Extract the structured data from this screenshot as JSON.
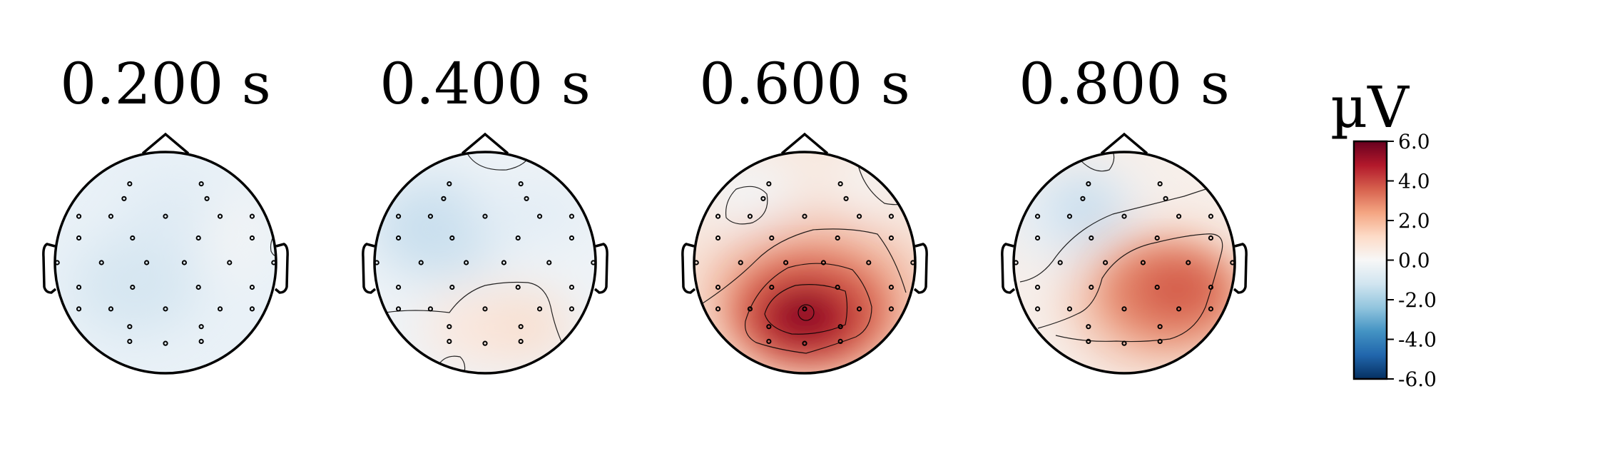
{
  "chart_data": {
    "type": "heatmap",
    "kind": "eeg-topomap",
    "colormap": "RdBu_r",
    "unit": "µV",
    "vlim": [
      -6.0,
      6.0
    ],
    "colorbar": {
      "title": "µV",
      "ticks": [
        6.0,
        4.0,
        2.0,
        0.0,
        -2.0,
        -4.0,
        -6.0
      ],
      "tick_labels": [
        "6.0",
        "4.0",
        "2.0",
        "0.0",
        "-2.0",
        "-4.0",
        "-6.0"
      ]
    },
    "panels": [
      {
        "label": "0.200 s",
        "time_s": 0.2,
        "mean_uV": -0.7,
        "peak_uV": -0.9
      },
      {
        "label": "0.400 s",
        "time_s": 0.4,
        "mean_uV": -0.2,
        "peak_uV": -1.2
      },
      {
        "label": "0.600 s",
        "time_s": 0.6,
        "mean_uV": 2.5,
        "peak_uV": 5.8
      },
      {
        "label": "0.800 s",
        "time_s": 0.8,
        "mean_uV": 1.6,
        "peak_uV": 3.2
      }
    ]
  },
  "colors": {
    "negative": "#053061",
    "neutral": "#f7f7f7",
    "positive": "#67001f"
  }
}
